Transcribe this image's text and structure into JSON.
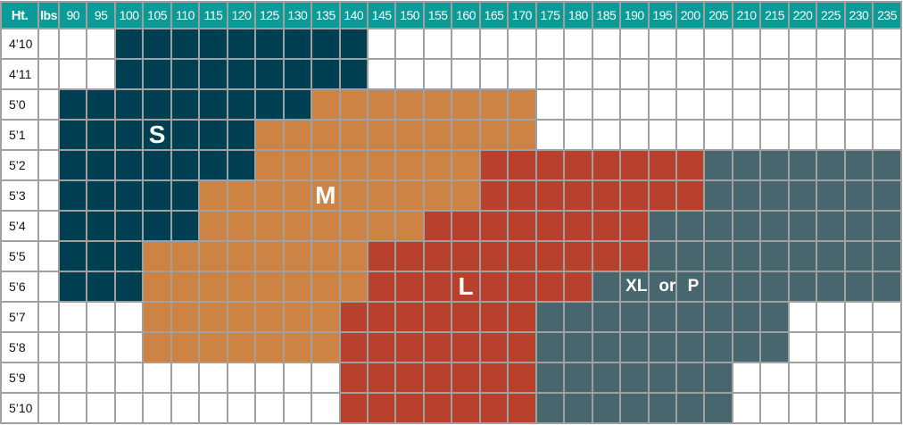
{
  "chart_data": {
    "type": "table",
    "header": {
      "height_label": "Ht.",
      "weight_label": "lbs"
    },
    "weights": [
      "90",
      "95",
      "100",
      "105",
      "110",
      "115",
      "120",
      "125",
      "130",
      "135",
      "140",
      "145",
      "150",
      "155",
      "160",
      "165",
      "170",
      "175",
      "180",
      "185",
      "190",
      "195",
      "200",
      "205",
      "210",
      "215",
      "220",
      "225",
      "230",
      "235"
    ],
    "legend_codes": {
      "S": "S",
      "M": "M",
      "L": "L",
      "X": "XL or P",
      "-": ""
    },
    "colors": {
      "header": "#0a9b98",
      "S": "#003f52",
      "M": "#cd8343",
      "L": "#b8412e",
      "X": "#47666e",
      "empty": "#ffffff",
      "grid": "#a0a0a0"
    },
    "rows": [
      {
        "height": "4’10",
        "sizes": "--SSSSSSSSS-------------------"
      },
      {
        "height": "4’11",
        "sizes": "--SSSSSSSSS-------------------"
      },
      {
        "height": "5’0",
        "sizes": "SSSSSSSSSMMMMMMMM-------------"
      },
      {
        "height": "5’1",
        "sizes": "SSSSSSSMMMMMMMMMM-------------"
      },
      {
        "height": "5’2",
        "sizes": "SSSSSSSMMMMMMMMLLLLLLLLXXXXXXX"
      },
      {
        "height": "5’3",
        "sizes": "SSSSSMMMMMMMMMMLLLLLLLLXXXXXXX"
      },
      {
        "height": "5’4",
        "sizes": "SSSSSMMMMMMMMLLLLLLLLXXXXXXXXX"
      },
      {
        "height": "5’5",
        "sizes": "SSSMMMMMMMMLLLLLLLLLLXXXXXXXXX"
      },
      {
        "height": "5’6",
        "sizes": "SSSMMMMMMMMLLLLLLLLXXXXXXXXXXX"
      },
      {
        "height": "5’7",
        "sizes": "---MMMMMMMLLLLLLLXXXXXXXXX----"
      },
      {
        "height": "5’8",
        "sizes": "---MMMMMMMLLLLLLLXXXXXXXXX----"
      },
      {
        "height": "5’9",
        "sizes": "----------LLLLLLLXXXXXXX------"
      },
      {
        "height": "5’10",
        "sizes": "----------LLLLLLLXXXXXXX------"
      }
    ],
    "labels": [
      {
        "text": "S",
        "height": "5’1",
        "weight": "105"
      },
      {
        "text": "M",
        "height": "5’3",
        "weight": "135"
      },
      {
        "text": "L",
        "height": "5’6",
        "weight": "160"
      },
      {
        "text": "XL or P",
        "height": "5’6",
        "weight": "195"
      }
    ]
  }
}
